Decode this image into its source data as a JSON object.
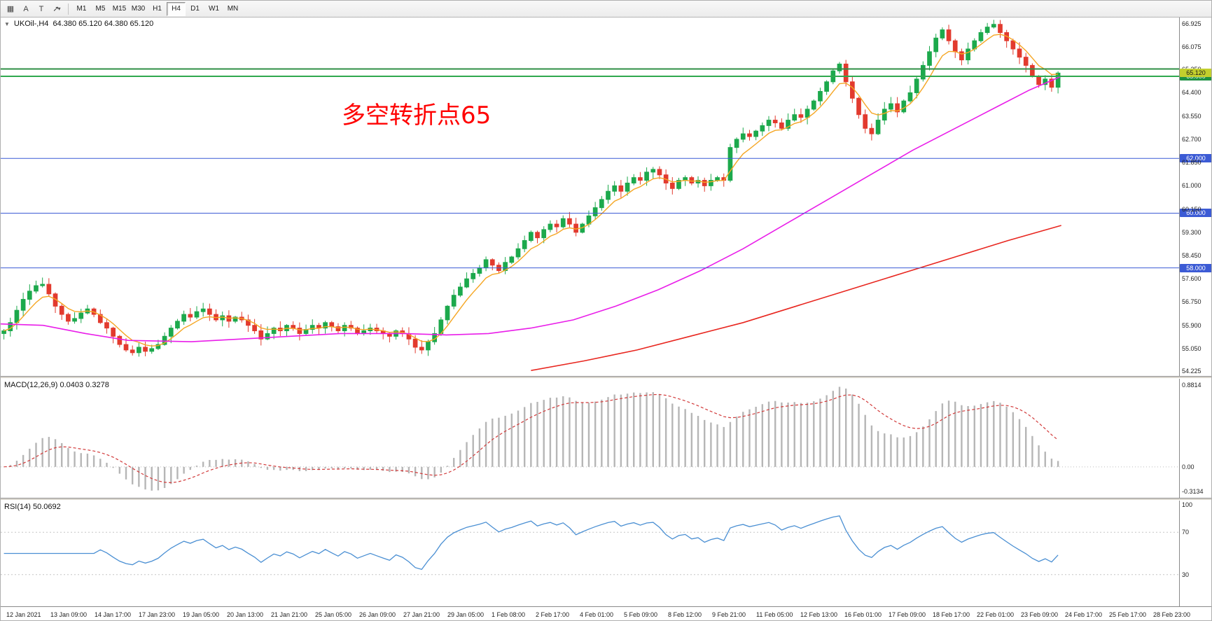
{
  "toolbar": {
    "icons": [
      {
        "name": "charts-grid-icon",
        "glyph": "▦"
      },
      {
        "name": "cursor-a-icon",
        "glyph": "A"
      },
      {
        "name": "text-tool-icon",
        "glyph": "T"
      },
      {
        "name": "draw-arrow-icon",
        "glyph": "➚"
      },
      {
        "name": "dropdown-caret-icon",
        "glyph": "▾"
      }
    ],
    "timeframes": [
      "M1",
      "M5",
      "M15",
      "M30",
      "H1",
      "H4",
      "D1",
      "W1",
      "MN"
    ],
    "active_timeframe": "H4"
  },
  "chart": {
    "symbol_label": "UKOil-,H4",
    "ohlc": "64.380 65.120 64.380 65.120",
    "annotation": "多空转折点65",
    "price_max": 67.15,
    "price_min": 54.05,
    "price_axis": [
      "66.925",
      "66.075",
      "65.250",
      "64.400",
      "63.550",
      "62.700",
      "61.850",
      "61.000",
      "60.150",
      "59.300",
      "58.450",
      "57.600",
      "56.750",
      "55.900",
      "55.050",
      "54.225"
    ],
    "hlines": [
      {
        "price": 65.27,
        "color": "#2f8f46",
        "width": 2,
        "tag": ""
      },
      {
        "price": 65.0,
        "color": "#2fa84f",
        "width": 2,
        "tag": "65.000",
        "tag_bg": "#1f9143",
        "tag_fg": "#ffffff"
      },
      {
        "price": 62.0,
        "color": "#3c5bd5",
        "width": 1,
        "tag": "62.000",
        "tag_bg": "#3c5bd5",
        "tag_fg": "#ffffff"
      },
      {
        "price": 60.0,
        "color": "#3c5bd5",
        "width": 1,
        "tag": "60.000",
        "tag_bg": "#3c5bd5",
        "tag_fg": "#ffffff"
      },
      {
        "price": 58.0,
        "color": "#3c5bd5",
        "width": 1,
        "tag": "58.000",
        "tag_bg": "#3c5bd5",
        "tag_fg": "#ffffff"
      }
    ],
    "current_price": {
      "value": "65.120",
      "tag_bg": "#c3cf2d",
      "tag_fg": "#1a1a1a"
    },
    "colors": {
      "up": "#1ca94c",
      "down": "#e23a2e",
      "ma_fast": "#f5a623",
      "ma_mid": "#e91ee9",
      "ma_slow": "#e8261f",
      "macd_hist": "#b6b6b6",
      "macd_signal": "#d23a3a",
      "rsi": "#4a8fd3"
    }
  },
  "chart_data": {
    "type": "candlestick",
    "symbol": "UKOil",
    "timeframe": "H4",
    "first_open": 55.6,
    "candle_area_frac": 0.9,
    "closes": [
      55.7,
      56.0,
      56.45,
      56.85,
      57.15,
      57.35,
      57.4,
      57.05,
      56.6,
      56.3,
      56.05,
      56.15,
      56.35,
      56.5,
      56.3,
      56.0,
      55.8,
      55.5,
      55.2,
      55.0,
      54.9,
      55.1,
      54.95,
      55.05,
      55.2,
      55.5,
      55.8,
      56.05,
      56.3,
      56.2,
      56.4,
      56.5,
      56.3,
      56.1,
      56.25,
      56.05,
      56.2,
      56.1,
      55.9,
      55.7,
      55.4,
      55.6,
      55.8,
      55.7,
      55.9,
      55.8,
      55.6,
      55.75,
      55.9,
      55.8,
      56.0,
      55.85,
      55.7,
      55.9,
      55.8,
      55.6,
      55.7,
      55.8,
      55.7,
      55.6,
      55.5,
      55.7,
      55.6,
      55.4,
      55.1,
      55.0,
      55.3,
      55.6,
      56.1,
      56.6,
      57.0,
      57.3,
      57.6,
      57.8,
      58.0,
      58.3,
      58.1,
      57.9,
      58.2,
      58.4,
      58.7,
      59.0,
      59.3,
      59.1,
      59.4,
      59.6,
      59.5,
      59.8,
      59.6,
      59.3,
      59.6,
      59.9,
      60.2,
      60.5,
      60.8,
      61.0,
      60.8,
      61.1,
      61.3,
      61.2,
      61.5,
      61.6,
      61.4,
      61.1,
      60.9,
      61.2,
      61.3,
      61.1,
      61.2,
      61.0,
      61.2,
      61.3,
      61.2,
      62.4,
      62.7,
      62.9,
      62.8,
      63.0,
      63.2,
      63.4,
      63.3,
      63.1,
      63.4,
      63.6,
      63.5,
      63.8,
      64.1,
      64.45,
      64.8,
      65.2,
      65.45,
      64.8,
      64.2,
      63.6,
      63.1,
      62.9,
      63.4,
      63.8,
      64.0,
      63.7,
      64.1,
      64.4,
      64.9,
      65.4,
      65.9,
      66.4,
      66.7,
      66.3,
      65.9,
      65.6,
      66.0,
      66.3,
      66.6,
      66.8,
      66.9,
      66.6,
      66.3,
      66.0,
      65.7,
      65.4,
      65.0,
      64.7,
      64.9,
      64.6,
      65.12
    ],
    "ma_fast_period": 6,
    "ma_mid_anchors": [
      [
        0.0,
        55.95
      ],
      [
        0.04,
        55.9
      ],
      [
        0.08,
        55.6
      ],
      [
        0.12,
        55.35
      ],
      [
        0.18,
        55.3
      ],
      [
        0.25,
        55.45
      ],
      [
        0.32,
        55.6
      ],
      [
        0.38,
        55.6
      ],
      [
        0.42,
        55.55
      ],
      [
        0.46,
        55.6
      ],
      [
        0.5,
        55.8
      ],
      [
        0.54,
        56.1
      ],
      [
        0.58,
        56.6
      ],
      [
        0.62,
        57.2
      ],
      [
        0.66,
        57.9
      ],
      [
        0.7,
        58.7
      ],
      [
        0.74,
        59.6
      ],
      [
        0.78,
        60.5
      ],
      [
        0.82,
        61.4
      ],
      [
        0.86,
        62.3
      ],
      [
        0.9,
        63.1
      ],
      [
        0.94,
        63.9
      ],
      [
        0.97,
        64.5
      ],
      [
        1.0,
        65.0
      ]
    ],
    "ma_slow_anchors": [
      [
        0.5,
        54.25
      ],
      [
        0.55,
        54.6
      ],
      [
        0.6,
        55.0
      ],
      [
        0.65,
        55.5
      ],
      [
        0.7,
        56.0
      ],
      [
        0.75,
        56.6
      ],
      [
        0.8,
        57.2
      ],
      [
        0.85,
        57.8
      ],
      [
        0.9,
        58.4
      ],
      [
        0.95,
        59.0
      ],
      [
        1.0,
        59.55
      ]
    ],
    "macd_params": {
      "fast": 12,
      "slow": 26,
      "signal": 9
    },
    "rsi_period": 14
  },
  "macd_panel": {
    "label": "MACD(12,26,9) 0.0403 0.3278",
    "axis_top": "0.8814",
    "axis_zero": "0.00",
    "axis_bottom": "-0.3134"
  },
  "rsi_panel": {
    "label": "RSI(14) 50.0692",
    "axis": [
      "100",
      "70",
      "30"
    ],
    "levels": [
      70,
      30
    ]
  },
  "time_axis": {
    "labels": [
      "12 Jan 2021",
      "13 Jan 09:00",
      "14 Jan 17:00",
      "17 Jan 23:00",
      "19 Jan 05:00",
      "20 Jan 13:00",
      "21 Jan 21:00",
      "25 Jan 05:00",
      "26 Jan 09:00",
      "27 Jan 21:00",
      "29 Jan 05:00",
      "1 Feb 08:00",
      "2 Feb 17:00",
      "4 Feb 01:00",
      "5 Feb 09:00",
      "8 Feb 12:00",
      "9 Feb 21:00",
      "11 Feb 05:00",
      "12 Feb 13:00",
      "16 Feb 01:00",
      "17 Feb 09:00",
      "18 Feb 17:00",
      "22 Feb 01:00",
      "23 Feb 09:00",
      "24 Feb 17:00",
      "25 Feb 17:00",
      "28 Feb 23:00"
    ]
  }
}
